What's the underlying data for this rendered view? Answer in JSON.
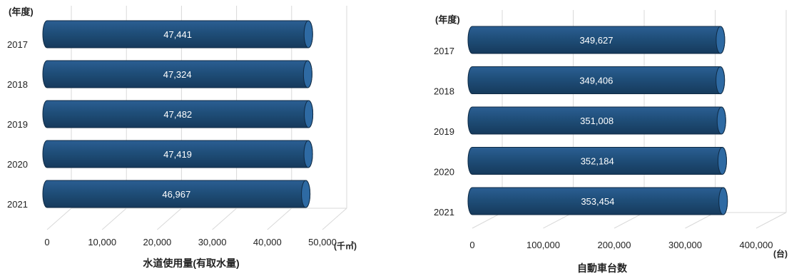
{
  "chart_data": [
    {
      "type": "bar",
      "orientation": "horizontal",
      "title": "水道使用量(有取水量)",
      "unit": "(千㎥)",
      "category_label": "(年度)",
      "categories": [
        "2017",
        "2018",
        "2019",
        "2020",
        "2021"
      ],
      "values": [
        47441,
        47324,
        47482,
        47419,
        46967
      ],
      "value_labels": [
        "47,441",
        "47,324",
        "47,482",
        "47,419",
        "46,967"
      ],
      "xlim": [
        0,
        50000
      ],
      "ticks": [
        0,
        10000,
        20000,
        30000,
        40000,
        50000
      ],
      "tick_labels": [
        "0",
        "10,000",
        "20,000",
        "30,000",
        "40,000",
        "50,000"
      ],
      "grid": true,
      "color": "#1f4e79"
    },
    {
      "type": "bar",
      "orientation": "horizontal",
      "title": "自動車台数",
      "unit": "(台)",
      "category_label": "(年度)",
      "categories": [
        "2017",
        "2018",
        "2019",
        "2020",
        "2021"
      ],
      "values": [
        349627,
        349406,
        351008,
        352184,
        353454
      ],
      "value_labels": [
        "349,627",
        "349,406",
        "351,008",
        "352,184",
        "353,454"
      ],
      "xlim": [
        0,
        400000
      ],
      "ticks": [
        0,
        100000,
        200000,
        300000,
        400000
      ],
      "tick_labels": [
        "0",
        "100,000",
        "200,000",
        "300,000",
        "400,000"
      ],
      "grid": true,
      "color": "#1f4e79"
    }
  ]
}
